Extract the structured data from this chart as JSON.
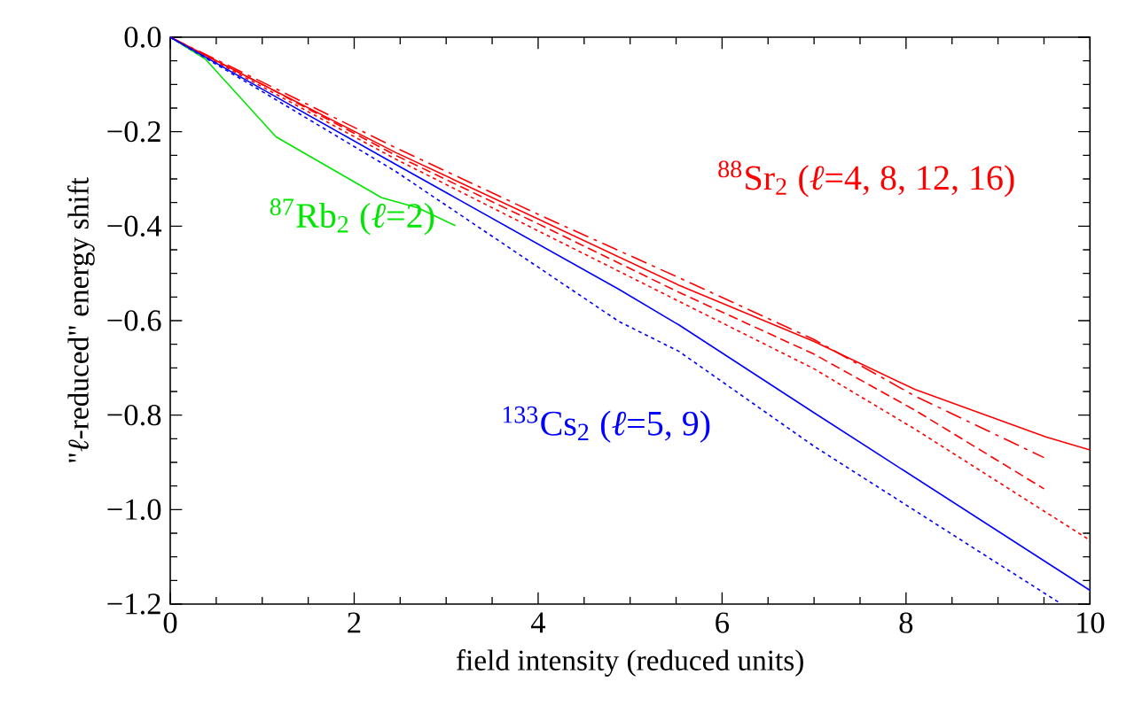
{
  "chart_data": {
    "type": "line",
    "xlabel": "field intensity (reduced units)",
    "ylabel": "\"*ℓ*-reduced\" energy shift",
    "xlim": [
      0,
      10
    ],
    "ylim": [
      -1.2,
      0
    ],
    "xticks": [
      0,
      2,
      4,
      6,
      8,
      10
    ],
    "yticks": [
      {
        "value": 0,
        "label": "0.0"
      },
      {
        "value": -0.2,
        "label": "−0.2"
      },
      {
        "value": -0.4,
        "label": "−0.4"
      },
      {
        "value": -0.6,
        "label": "−0.6"
      },
      {
        "value": -0.8,
        "label": "−0.8"
      },
      {
        "value": -1.0,
        "label": "−1.0"
      },
      {
        "value": -1.2,
        "label": "−1.2"
      }
    ],
    "series": [
      {
        "color": "#00e600",
        "line_style": "solid",
        "x": [
          0,
          0.38,
          1.15,
          2.3,
          2.69,
          3.1
        ],
        "values": [
          0,
          -0.046,
          -0.211,
          -0.34,
          -0.361,
          -0.399
        ]
      },
      {
        "color": "#ff0000",
        "line_style": "solid",
        "x": [
          0,
          1,
          2.45,
          4,
          5.53,
          7,
          8.1,
          9.52,
          10
        ],
        "values": [
          0,
          -0.1,
          -0.244,
          -0.385,
          -0.525,
          -0.644,
          -0.746,
          -0.846,
          -0.874
        ]
      },
      {
        "color": "#ff0000",
        "line_style": "dashdot",
        "x": [
          0,
          1,
          2.45,
          4,
          5.53,
          7,
          8.1,
          9.5
        ],
        "values": [
          0,
          -0.095,
          -0.234,
          -0.375,
          -0.509,
          -0.64,
          -0.76,
          -0.89
        ]
      },
      {
        "color": "#ff0000",
        "line_style": "dashed",
        "x": [
          0,
          1,
          2.45,
          4,
          5.53,
          7,
          8.1,
          9.5
        ],
        "values": [
          0,
          -0.1,
          -0.25,
          -0.395,
          -0.54,
          -0.671,
          -0.79,
          -0.956
        ]
      },
      {
        "color": "#ff0000",
        "line_style": "dotted",
        "x": [
          0,
          1,
          2.45,
          4,
          5.53,
          7,
          8.1,
          10
        ],
        "values": [
          0,
          -0.105,
          -0.258,
          -0.41,
          -0.559,
          -0.702,
          -0.83,
          -1.065
        ]
      },
      {
        "color": "#0000ff",
        "line_style": "solid",
        "x": [
          0,
          1,
          2.45,
          4.88,
          5.53,
          7,
          10
        ],
        "values": [
          0,
          -0.11,
          -0.269,
          -0.534,
          -0.609,
          -0.795,
          -1.171
        ]
      },
      {
        "color": "#0000ff",
        "line_style": "dotted",
        "x": [
          0,
          1,
          2.45,
          4.88,
          5.53,
          7,
          9.69
        ],
        "values": [
          0,
          -0.115,
          -0.284,
          -0.602,
          -0.665,
          -0.866,
          -1.2
        ]
      }
    ],
    "annotations": [
      "$^{87}$Rb$_{2}$ (*ℓ*=2)",
      "$^{88}$Sr$_{2}$ (*ℓ*=4, 8, 12, 16)",
      "$^{133}$Cs$_{2}$ (*ℓ*=5, 9)"
    ]
  }
}
